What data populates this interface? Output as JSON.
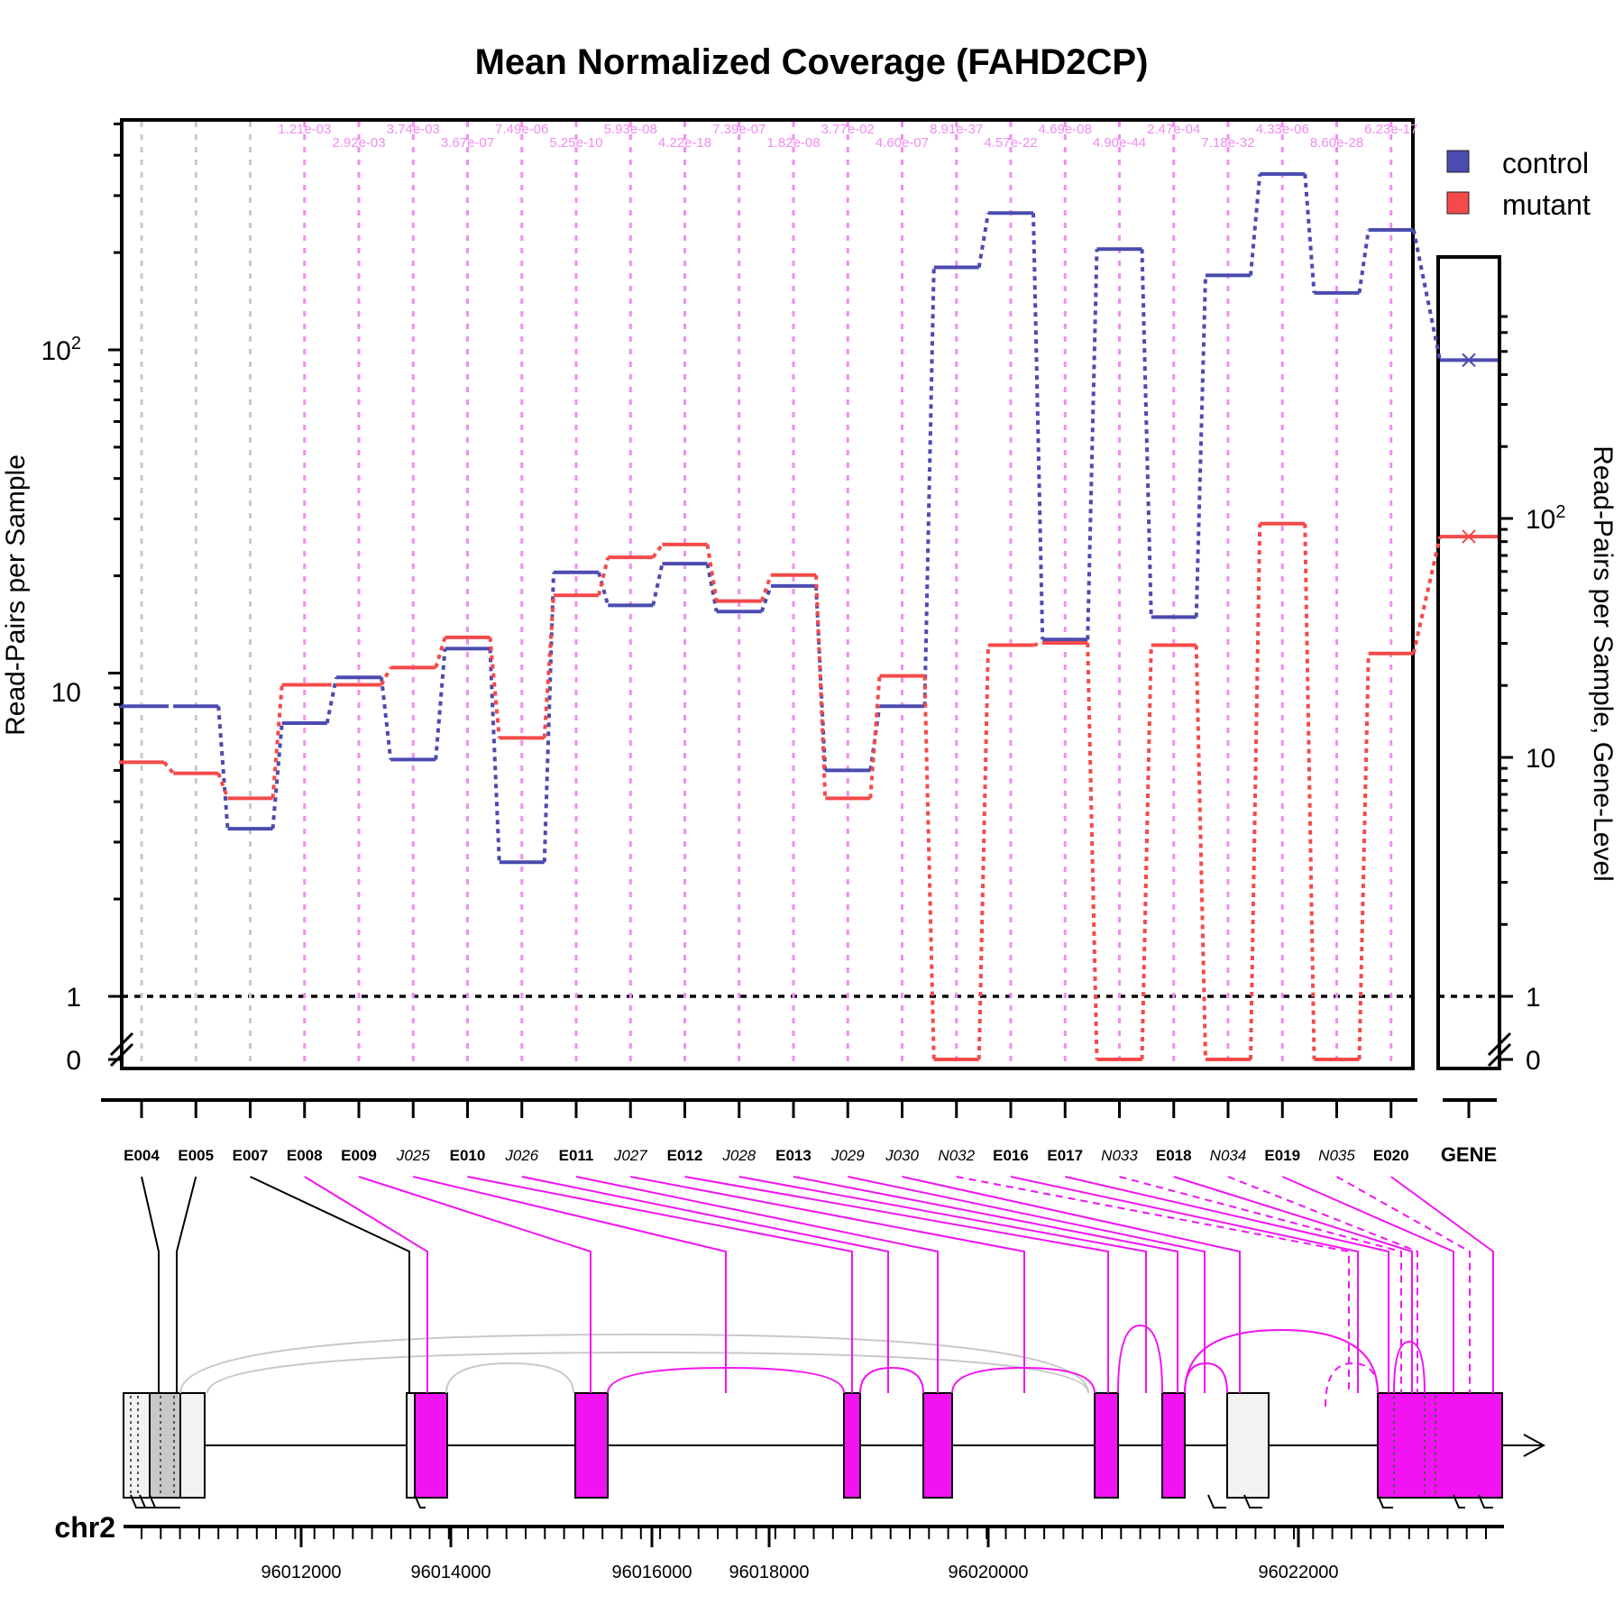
{
  "chart_data": {
    "type": "line",
    "title": "Mean Normalized Coverage (FAHD2CP)",
    "ylabel": "Read-Pairs per Sample",
    "ylabel_right": "Read-Pairs per Sample, Gene-Level",
    "y_scale": "log",
    "y_tick_labels": [
      "0",
      "1",
      "10",
      "10^2"
    ],
    "y_right_tick_labels": [
      "0",
      "1",
      "10",
      "10^2"
    ],
    "legend": [
      {
        "name": "control",
        "color": "#4b4bb0"
      },
      {
        "name": "mutant",
        "color": "#f44a4a"
      }
    ],
    "features": [
      {
        "id": "E004",
        "junction": false,
        "significant": false,
        "pval": "",
        "control": 7.9,
        "mutant": 5.3
      },
      {
        "id": "E005",
        "junction": false,
        "significant": false,
        "pval": "",
        "control": 7.9,
        "mutant": 4.9
      },
      {
        "id": "E007",
        "junction": false,
        "significant": false,
        "pval": "",
        "control": 3.3,
        "mutant": 4.1
      },
      {
        "id": "E008",
        "junction": false,
        "significant": true,
        "pval": "1.21e-03",
        "control": 7.0,
        "mutant": 9.2
      },
      {
        "id": "E009",
        "junction": false,
        "significant": true,
        "pval": "2.92e-03",
        "control": 9.7,
        "mutant": 9.2
      },
      {
        "id": "J025",
        "junction": true,
        "significant": true,
        "pval": "3.74e-03",
        "control": 5.4,
        "mutant": 10.4
      },
      {
        "id": "E010",
        "junction": false,
        "significant": true,
        "pval": "3.67e-07",
        "control": 11.9,
        "mutant": 12.9
      },
      {
        "id": "J026",
        "junction": true,
        "significant": true,
        "pval": "7.49e-06",
        "control": 2.6,
        "mutant": 6.3
      },
      {
        "id": "E011",
        "junction": false,
        "significant": true,
        "pval": "5.25e-10",
        "control": 20.5,
        "mutant": 17.4
      },
      {
        "id": "J027",
        "junction": true,
        "significant": true,
        "pval": "5.93e-08",
        "control": 16.2,
        "mutant": 22.8
      },
      {
        "id": "E012",
        "junction": false,
        "significant": true,
        "pval": "4.22e-18",
        "control": 21.8,
        "mutant": 25.0
      },
      {
        "id": "J028",
        "junction": true,
        "significant": true,
        "pval": "7.39e-07",
        "control": 15.5,
        "mutant": 16.7
      },
      {
        "id": "E013",
        "junction": false,
        "significant": true,
        "pval": "1.82e-08",
        "control": 18.6,
        "mutant": 20.1
      },
      {
        "id": "J029",
        "junction": true,
        "significant": true,
        "pval": "3.77e-02",
        "control": 5.0,
        "mutant": 4.1
      },
      {
        "id": "J030",
        "junction": true,
        "significant": true,
        "pval": "4.60e-07",
        "control": 7.9,
        "mutant": 9.8
      },
      {
        "id": "N032",
        "junction": true,
        "significant": true,
        "pval": "8.91e-37",
        "control": 180,
        "mutant": 0
      },
      {
        "id": "E016",
        "junction": false,
        "significant": true,
        "pval": "4.57e-22",
        "control": 265,
        "mutant": 12.2
      },
      {
        "id": "E017",
        "junction": false,
        "significant": true,
        "pval": "4.69e-08",
        "control": 12.7,
        "mutant": 12.4
      },
      {
        "id": "N033",
        "junction": true,
        "significant": true,
        "pval": "4.90e-44",
        "control": 205,
        "mutant": 0
      },
      {
        "id": "E018",
        "junction": false,
        "significant": true,
        "pval": "2.47e-04",
        "control": 14.9,
        "mutant": 12.2
      },
      {
        "id": "N034",
        "junction": true,
        "significant": true,
        "pval": "7.18e-32",
        "control": 170,
        "mutant": 0
      },
      {
        "id": "E019",
        "junction": false,
        "significant": true,
        "pval": "4.33e-06",
        "control": 350,
        "mutant": 29.0
      },
      {
        "id": "N035",
        "junction": true,
        "significant": true,
        "pval": "8.60e-28",
        "control": 150,
        "mutant": 0
      },
      {
        "id": "E020",
        "junction": false,
        "significant": true,
        "pval": "6.23e-17",
        "control": 235,
        "mutant": 11.5
      }
    ],
    "gene_level": {
      "label": "GENE",
      "control": 460,
      "mutant": 84
    },
    "chromosome": "chr2",
    "genomic_ticks": [
      "96012000",
      "96014000",
      "96016000",
      "96018000",
      "96020000",
      "96022000"
    ]
  }
}
